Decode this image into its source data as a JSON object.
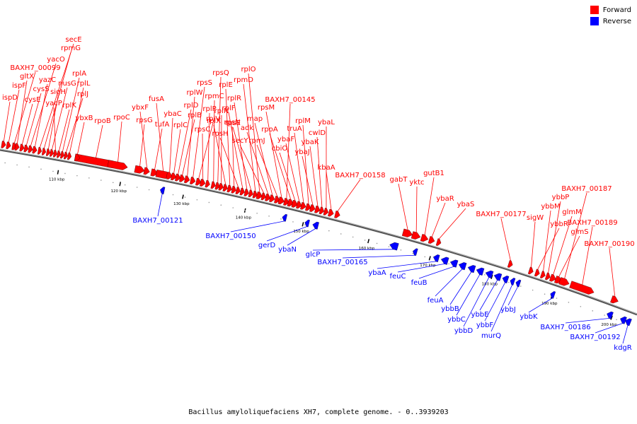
{
  "legend": {
    "forward_label": "Forward",
    "reverse_label": "Reverse",
    "forward_color": "#ff0000",
    "reverse_color": "#0000ff"
  },
  "caption": "Bacillus amyloliquefaciens XH7, complete genome. - 0..3939203",
  "tick_labels": [
    "110 kbp",
    "120 kbp",
    "130 kbp",
    "140 kbp",
    "150 kbp",
    "160 kbp",
    "170 kbp",
    "180 kbp",
    "190 kbp",
    "200 kbp"
  ],
  "forward_genes": [
    "ispD",
    "ispF",
    "BAXH7_00099",
    "gltX",
    "cysE",
    "cysS",
    "yacO",
    "yazC",
    "secE",
    "rpmG",
    "sigH",
    "nusG",
    "yacP",
    "rplK",
    "rplA",
    "rplJ",
    "rplL",
    "rpoB",
    "ybxB",
    "rpoC",
    "rpsG",
    "ybxF",
    "tufA",
    "fusA",
    "ybaC",
    "rplC",
    "rplD",
    "rplB",
    "rplW",
    "rpsS",
    "rplV",
    "rpsC",
    "rplP",
    "rpmC",
    "rpsQ",
    "rplN",
    "rplX",
    "rplE",
    "rpsN",
    "rpsH",
    "rplF",
    "rplR",
    "rpsE",
    "rpmD",
    "rplO",
    "secY",
    "adk",
    "map",
    "rpmJ",
    "rpsM",
    "BAXH7_00145",
    "rpoA",
    "cbiO",
    "ybaF",
    "truA",
    "rplM",
    "ybaJ",
    "ybaK",
    "cwlD",
    "ybaL",
    "kbaA",
    "BAXH7_00158",
    "gabT",
    "yktc",
    "gutB1",
    "ybaR",
    "ybaS",
    "BAXH7_00177",
    "sigW",
    "ybbR",
    "ybbM",
    "ybbP",
    "glmM",
    "glmS",
    "BAXH7_00187",
    "BAXH7_00189",
    "BAXH7_00190"
  ],
  "reverse_genes": [
    "BAXH7_00121",
    "BAXH7_00150",
    "gerD",
    "ybaN",
    "glcP",
    "BAXH7_00165",
    "ybaA",
    "feuC",
    "feuB",
    "feuA",
    "ybbB",
    "ybbC",
    "ybbD",
    "ybbE",
    "ybbF",
    "murQ",
    "ybbJ",
    "ybbK",
    "BAXH7_00186",
    "BAXH7_00192",
    "kdgR"
  ]
}
